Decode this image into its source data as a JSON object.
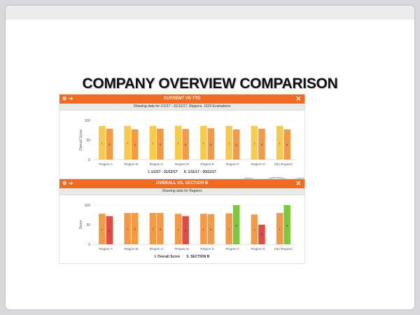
{
  "slide": {
    "title": "COMPANY OVERVIEW COMPARISON"
  },
  "panel1": {
    "title": "CURRENT VS YTD",
    "subtitle": "Showing data for 1/1/17 - 31/12/17, Regions. 1620 Evaluations",
    "icons": [
      "gear-icon",
      "export-icon",
      "close-icon"
    ],
    "legend": [
      "I. 1/1/17 - 31/12/17",
      "II. 1/11/17 - 30/11/17"
    ]
  },
  "panel2": {
    "title": "OVERALL VS. SECTION B",
    "subtitle": "Showing data for Regions",
    "icons": [
      "gear-icon",
      "export-icon",
      "close-icon"
    ],
    "legend": [
      "I. Overall Score",
      "II. SECTION B"
    ]
  },
  "colors": {
    "header": "#f06a22",
    "yellow": "#f9c94a",
    "orange": "#f49a45",
    "red": "#e44a44",
    "green": "#7cc83a"
  },
  "chart_data": [
    {
      "type": "bar",
      "title": "CURRENT VS YTD",
      "ylabel": "Overall Score",
      "ylim": [
        0,
        100
      ],
      "yticks": [
        0,
        50,
        100
      ],
      "categories": [
        "Region A",
        "Region B",
        "Region C",
        "Region D",
        "Region E",
        "Region F",
        "Region G",
        "[No Region]"
      ],
      "series": [
        {
          "name": "I. 1/1/17 - 31/12/17",
          "marker": "I",
          "values": [
            86,
            86,
            86,
            86,
            86,
            86,
            86,
            86
          ],
          "colors": [
            "#f9c94a",
            "#f9c94a",
            "#f9c94a",
            "#f9c94a",
            "#f9c94a",
            "#f9c94a",
            "#f9c94a",
            "#f9c94a"
          ]
        },
        {
          "name": "II. 1/11/17 - 30/11/17",
          "marker": "II",
          "values": [
            79,
            77,
            79,
            78,
            80,
            77,
            79,
            77
          ],
          "colors": [
            "#f49a45",
            "#f49a45",
            "#f49a45",
            "#f49a45",
            "#f49a45",
            "#f49a45",
            "#f49a45",
            "#f49a45"
          ]
        }
      ]
    },
    {
      "type": "bar",
      "title": "OVERALL VS. SECTION B",
      "ylabel": "Score",
      "ylim": [
        0,
        100
      ],
      "yticks": [
        0,
        50,
        100
      ],
      "categories": [
        "Region A",
        "Region B",
        "Region C",
        "Region D",
        "Region E",
        "Region F",
        "Region G",
        "[No Region]"
      ],
      "series": [
        {
          "name": "I. Overall Score",
          "marker": "I",
          "values": [
            78,
            80,
            80,
            78,
            78,
            79,
            76,
            80
          ],
          "colors": [
            "#f49a45",
            "#f49a45",
            "#f49a45",
            "#f49a45",
            "#f49a45",
            "#f49a45",
            "#f49a45",
            "#f49a45"
          ]
        },
        {
          "name": "II. SECTION B",
          "marker": "II",
          "values": [
            72,
            80,
            80,
            72,
            77,
            100,
            50,
            100
          ],
          "colors": [
            "#e44a44",
            "#f49a45",
            "#f49a45",
            "#e44a44",
            "#f49a45",
            "#7cc83a",
            "#e44a44",
            "#7cc83a"
          ]
        }
      ]
    }
  ]
}
